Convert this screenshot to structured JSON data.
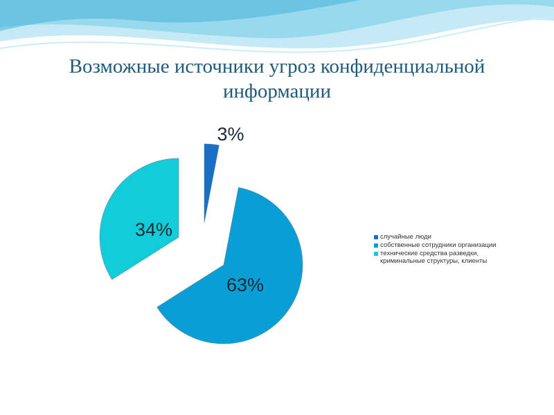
{
  "title": "Возможные источники угроз конфиденциальной информации",
  "chart_data": {
    "type": "pie",
    "title": "Возможные источники угроз конфиденциальной информации",
    "exploded": true,
    "legend_position": "right",
    "categories": [
      "случайные люди",
      "собственные сотрудники организации",
      "технические средства разведки, криминальные структуры, клиенты"
    ],
    "values": [
      3,
      63,
      34
    ],
    "labels": [
      "3%",
      "63%",
      "34%"
    ],
    "colors": [
      "#1a6fc4",
      "#0a9ed6",
      "#12cdd9"
    ]
  }
}
